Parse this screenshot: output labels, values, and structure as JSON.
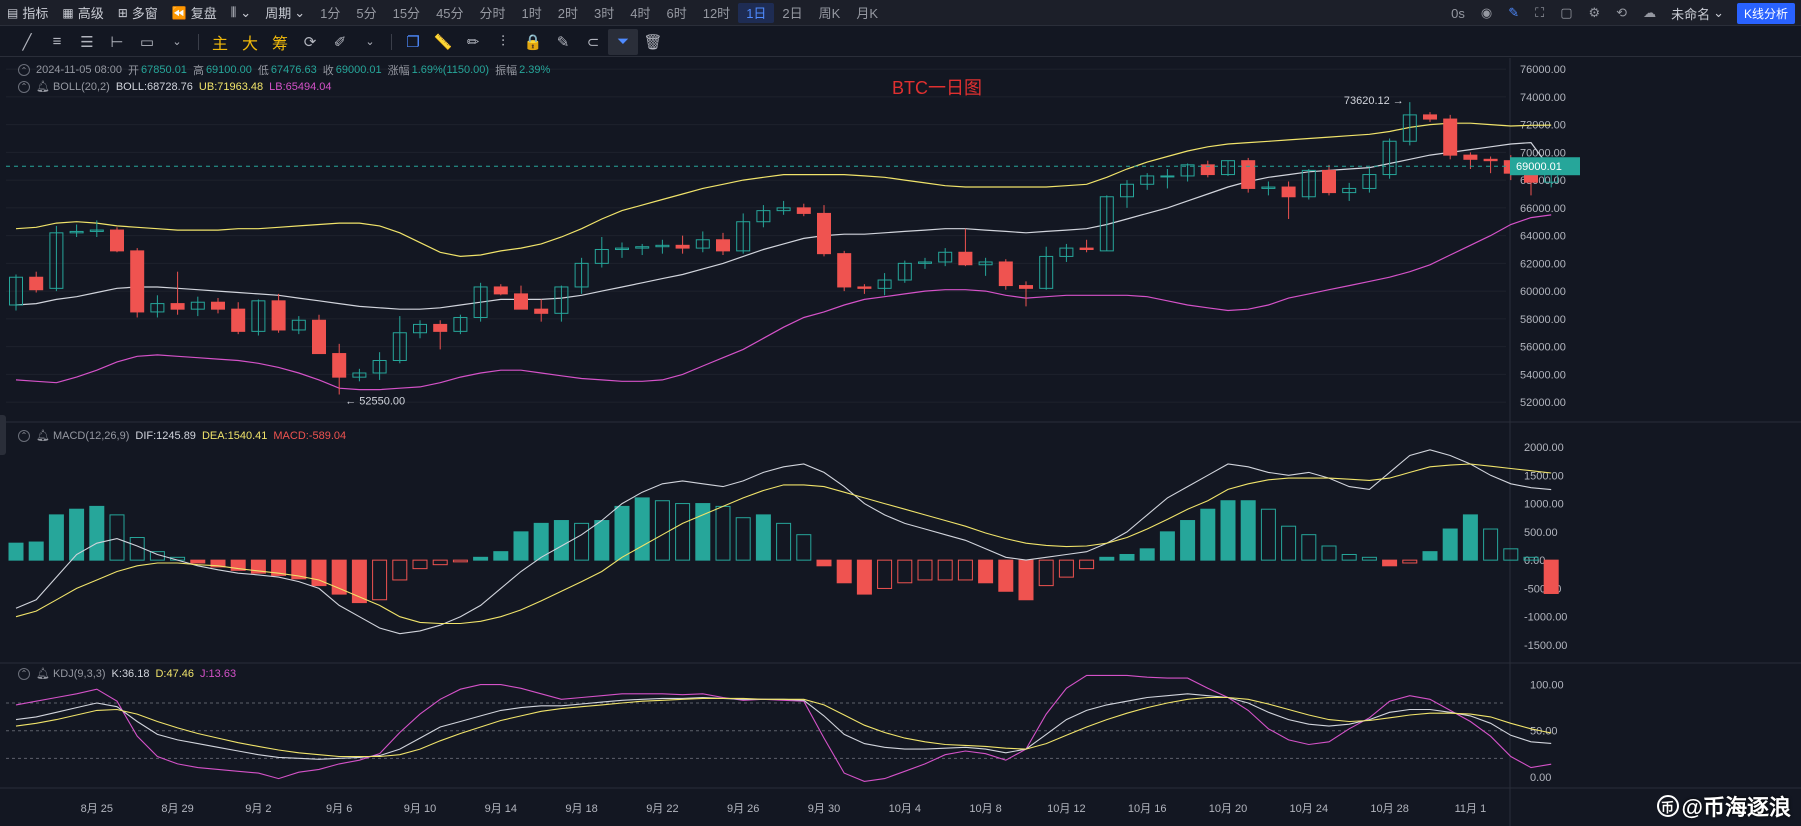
{
  "topbar": {
    "indicators": "指标",
    "advanced": "高级",
    "multi": "多窗",
    "replay": "复盘",
    "period_label": "周期",
    "periods": [
      "1分",
      "5分",
      "15分",
      "45分",
      "分时",
      "1时",
      "2时",
      "3时",
      "4时",
      "6时",
      "12时",
      "1日",
      "2日",
      "周K",
      "月K"
    ],
    "active_period": "1日",
    "countdown": "0s",
    "layout_name": "未命名",
    "kline_btn": "K线分析"
  },
  "drawbar": {
    "main": "主",
    "large": "大",
    "chip": "筹"
  },
  "colors": {
    "up": "#26a69a",
    "down": "#ef5350",
    "boll_mid": "#d1d4dc",
    "boll_up": "#f0e36a",
    "boll_lb": "#d452c8",
    "dif": "#d1d4dc",
    "dea": "#f0e36a",
    "kdj_j": "#d452c8",
    "price_tag": "#26a69a"
  },
  "legend": {
    "date": "2024-11-05 08:00",
    "open_label": "开",
    "open": "67850.01",
    "high_label": "高",
    "high": "69100.00",
    "low_label": "低",
    "low": "67476.63",
    "close_label": "收",
    "close": "69000.01",
    "change_label": "涨幅",
    "change": "1.69%(1150.00)",
    "amp_label": "振幅",
    "amp": "2.39%",
    "boll_name": "BOLL(20,2)",
    "boll": "BOLL:68728.76",
    "ub": "UB:71963.48",
    "lb": "LB:65494.04",
    "macd_name": "MACD(12,26,9)",
    "dif": "DIF:1245.89",
    "dea": "DEA:1540.41",
    "macd": "MACD:-589.04",
    "kdj_name": "KDJ(9,3,3)",
    "k": "K:36.18",
    "d": "D:47.46",
    "j": "J:13.63"
  },
  "annotation_title": "BTC一日图",
  "watermark": "@币海逐浪",
  "chart_data": {
    "type": "candlestick",
    "title": "BTC一日图",
    "x_tick_labels": [
      "8月 25",
      "8月 29",
      "9月 2",
      "9月 6",
      "9月 10",
      "9月 14",
      "9月 18",
      "9月 22",
      "9月 26",
      "9月 30",
      "10月 4",
      "10月 8",
      "10月 12",
      "10月 16",
      "10月 20",
      "10月 24",
      "10月 28",
      "11月 1"
    ],
    "x_tick_positions": [
      4,
      8,
      12,
      16,
      20,
      24,
      28,
      32,
      36,
      40,
      44,
      48,
      52,
      56,
      60,
      64,
      68,
      72
    ],
    "price_axis": {
      "ylim": [
        51000,
        76800
      ],
      "ticks": [
        76000,
        74000,
        72000,
        70000,
        68000,
        66000,
        64000,
        62000,
        60000,
        58000,
        56000,
        54000,
        52000
      ]
    },
    "last_price": "69000.01",
    "high_marker": "73620.12",
    "low_marker": "52550.00",
    "candles": [
      [
        59000,
        61200,
        58600,
        61000
      ],
      [
        61000,
        61400,
        59900,
        60100
      ],
      [
        60200,
        64700,
        60000,
        64200
      ],
      [
        64200,
        64800,
        63900,
        64300
      ],
      [
        64300,
        65100,
        63900,
        64400
      ],
      [
        64400,
        64600,
        62800,
        62900
      ],
      [
        62900,
        63100,
        58100,
        58500
      ],
      [
        58500,
        59700,
        58100,
        59100
      ],
      [
        59100,
        61400,
        58300,
        58700
      ],
      [
        58700,
        59600,
        58200,
        59200
      ],
      [
        59200,
        59500,
        58400,
        58700
      ],
      [
        58700,
        59200,
        56900,
        57100
      ],
      [
        57100,
        59400,
        56800,
        59300
      ],
      [
        59300,
        59800,
        57000,
        57200
      ],
      [
        57200,
        58200,
        56900,
        57900
      ],
      [
        57900,
        58300,
        55500,
        55500
      ],
      [
        55500,
        56200,
        52550,
        53800
      ],
      [
        53800,
        54400,
        53500,
        54100
      ],
      [
        54100,
        55600,
        53600,
        55000
      ],
      [
        55000,
        58200,
        54800,
        57000
      ],
      [
        57000,
        57900,
        56600,
        57600
      ],
      [
        57600,
        57900,
        55800,
        57100
      ],
      [
        57100,
        58300,
        56900,
        58100
      ],
      [
        58100,
        60600,
        57800,
        60300
      ],
      [
        60300,
        60500,
        59700,
        59800
      ],
      [
        59800,
        60400,
        58800,
        58700
      ],
      [
        58700,
        59400,
        57800,
        58400
      ],
      [
        58400,
        60400,
        57800,
        60300
      ],
      [
        60300,
        62400,
        59800,
        62000
      ],
      [
        62000,
        63900,
        61700,
        63000
      ],
      [
        63000,
        63500,
        62400,
        63100
      ],
      [
        63100,
        63400,
        62600,
        63200
      ],
      [
        63200,
        63700,
        62700,
        63300
      ],
      [
        63300,
        64000,
        62700,
        63100
      ],
      [
        63100,
        64300,
        62800,
        63700
      ],
      [
        63700,
        64200,
        62600,
        62900
      ],
      [
        62900,
        65600,
        62700,
        65000
      ],
      [
        65000,
        66200,
        64600,
        65800
      ],
      [
        65800,
        66500,
        65500,
        66000
      ],
      [
        66000,
        66300,
        65400,
        65600
      ],
      [
        65600,
        66200,
        62500,
        62700
      ],
      [
        62700,
        62900,
        60000,
        60300
      ],
      [
        60300,
        60500,
        59800,
        60200
      ],
      [
        60200,
        61300,
        59700,
        60800
      ],
      [
        60800,
        62200,
        60600,
        62000
      ],
      [
        62000,
        62400,
        61600,
        62100
      ],
      [
        62100,
        63100,
        61800,
        62800
      ],
      [
        62800,
        64500,
        61800,
        61900
      ],
      [
        61900,
        62400,
        61100,
        62100
      ],
      [
        62100,
        62300,
        60100,
        60400
      ],
      [
        60400,
        60700,
        58900,
        60200
      ],
      [
        60200,
        63200,
        60100,
        62500
      ],
      [
        62500,
        63400,
        62100,
        63100
      ],
      [
        63100,
        63700,
        62800,
        63000
      ],
      [
        62900,
        66900,
        62900,
        66800
      ],
      [
        66800,
        68000,
        66000,
        67700
      ],
      [
        67700,
        68500,
        67300,
        68300
      ],
      [
        68300,
        68800,
        67400,
        68300
      ],
      [
        68300,
        69200,
        67900,
        69100
      ],
      [
        69100,
        69400,
        68200,
        68400
      ],
      [
        68400,
        69400,
        68300,
        69400
      ],
      [
        69400,
        69600,
        67100,
        67400
      ],
      [
        67400,
        67900,
        66900,
        67500
      ],
      [
        67500,
        67900,
        65200,
        66800
      ],
      [
        66800,
        68800,
        66600,
        68700
      ],
      [
        68700,
        69100,
        66900,
        67100
      ],
      [
        67100,
        67800,
        66500,
        67400
      ],
      [
        67400,
        68900,
        67100,
        68400
      ],
      [
        68400,
        71000,
        68100,
        70800
      ],
      [
        70800,
        73620.12,
        70500,
        72700
      ],
      [
        72700,
        72900,
        72200,
        72400
      ],
      [
        72400,
        72700,
        69500,
        69800
      ],
      [
        69800,
        70000,
        68800,
        69500
      ],
      [
        69500,
        69700,
        68500,
        69400
      ],
      [
        69400,
        69800,
        68000,
        68500
      ],
      [
        68500,
        69600,
        66900,
        67850
      ],
      [
        67850,
        69100,
        67476,
        69000
      ]
    ],
    "boll": {
      "mid": [
        59000,
        59100,
        59400,
        59600,
        59900,
        60200,
        60300,
        60300,
        60200,
        60100,
        60000,
        59900,
        59800,
        59700,
        59500,
        59300,
        59100,
        58900,
        58800,
        58700,
        58700,
        58800,
        59000,
        59200,
        59400,
        59400,
        59400,
        59500,
        59700,
        60000,
        60300,
        60600,
        60900,
        61200,
        61600,
        62000,
        62500,
        63000,
        63400,
        63800,
        64000,
        64100,
        64100,
        64200,
        64300,
        64400,
        64500,
        64500,
        64400,
        64300,
        64200,
        64300,
        64400,
        64500,
        64800,
        65200,
        65600,
        66000,
        66500,
        67000,
        67500,
        67900,
        68200,
        68400,
        68600,
        68700,
        68800,
        68900,
        69200,
        69500,
        69800,
        70000,
        70200,
        70400,
        70600,
        70700,
        68728.76
      ],
      "upper": [
        64500,
        64600,
        64900,
        65000,
        64900,
        64700,
        64600,
        64500,
        64400,
        64400,
        64400,
        64500,
        64500,
        64600,
        64700,
        64800,
        64900,
        64900,
        64700,
        64200,
        63500,
        62800,
        62500,
        62600,
        62900,
        63100,
        63400,
        63900,
        64500,
        65200,
        65800,
        66200,
        66600,
        67000,
        67400,
        67700,
        68000,
        68200,
        68400,
        68400,
        68400,
        68400,
        68300,
        68200,
        68000,
        67800,
        67600,
        67500,
        67500,
        67500,
        67500,
        67500,
        67600,
        67700,
        68200,
        68800,
        69300,
        69700,
        70100,
        70400,
        70600,
        70700,
        70800,
        70900,
        71000,
        71100,
        71200,
        71300,
        71500,
        71800,
        72000,
        72100,
        72100,
        72000,
        71900,
        71950,
        71963.48
      ],
      "lower": [
        53600,
        53500,
        53400,
        53800,
        54300,
        54900,
        55300,
        55400,
        55300,
        55200,
        55100,
        55000,
        54800,
        54500,
        54100,
        53600,
        53000,
        52900,
        52900,
        53000,
        53100,
        53400,
        53800,
        54100,
        54300,
        54300,
        54100,
        53900,
        53700,
        53600,
        53500,
        53500,
        53600,
        54000,
        54600,
        55200,
        55800,
        56600,
        57400,
        58100,
        58500,
        59000,
        59400,
        59600,
        59800,
        60000,
        60100,
        60100,
        60000,
        59700,
        59500,
        59600,
        59700,
        59700,
        59700,
        59700,
        59600,
        59300,
        59000,
        58800,
        58600,
        58700,
        59000,
        59500,
        59800,
        60100,
        60400,
        60700,
        61000,
        61400,
        61900,
        62600,
        63300,
        64000,
        64800,
        65300,
        65494.04
      ]
    },
    "macd_axis": {
      "ylim": [
        -1800,
        2300
      ],
      "ticks": [
        2000,
        1500,
        1000,
        500,
        0,
        -500,
        -1000,
        -1500
      ]
    },
    "macd": {
      "dif": [
        -850,
        -700,
        -300,
        100,
        300,
        380,
        250,
        100,
        0,
        -100,
        -170,
        -230,
        -260,
        -300,
        -380,
        -500,
        -800,
        -1000,
        -1200,
        -1300,
        -1250,
        -1150,
        -1000,
        -800,
        -500,
        -200,
        50,
        250,
        450,
        700,
        1000,
        1200,
        1350,
        1400,
        1350,
        1300,
        1400,
        1550,
        1650,
        1700,
        1550,
        1300,
        1000,
        800,
        650,
        550,
        450,
        350,
        200,
        50,
        0,
        50,
        100,
        150,
        300,
        500,
        800,
        1100,
        1300,
        1500,
        1700,
        1650,
        1550,
        1500,
        1550,
        1450,
        1300,
        1250,
        1550,
        1850,
        1950,
        1850,
        1700,
        1500,
        1350,
        1280,
        1245.89
      ],
      "dea": [
        -1000,
        -900,
        -700,
        -500,
        -350,
        -200,
        -100,
        -50,
        -50,
        -80,
        -100,
        -150,
        -190,
        -230,
        -280,
        -350,
        -500,
        -650,
        -800,
        -1000,
        -1100,
        -1120,
        -1120,
        -1080,
        -1000,
        -880,
        -720,
        -550,
        -380,
        -200,
        50,
        250,
        450,
        650,
        800,
        950,
        1100,
        1230,
        1330,
        1330,
        1300,
        1200,
        1100,
        1000,
        900,
        800,
        700,
        600,
        480,
        380,
        300,
        260,
        240,
        250,
        300,
        400,
        550,
        720,
        900,
        1050,
        1250,
        1350,
        1420,
        1450,
        1450,
        1450,
        1430,
        1410,
        1450,
        1550,
        1650,
        1680,
        1700,
        1660,
        1620,
        1580,
        1540.41
      ],
      "hist": [
        300,
        320,
        800,
        900,
        950,
        800,
        400,
        150,
        50,
        -50,
        -120,
        -180,
        -230,
        -270,
        -330,
        -450,
        -600,
        -750,
        -700,
        -350,
        -150,
        -80,
        -30,
        50,
        150,
        500,
        650,
        700,
        650,
        700,
        950,
        1100,
        1050,
        1000,
        1000,
        950,
        750,
        800,
        650,
        450,
        -100,
        -400,
        -600,
        -500,
        -400,
        -350,
        -350,
        -350,
        -400,
        -550,
        -700,
        -450,
        -300,
        -150,
        50,
        100,
        200,
        500,
        700,
        900,
        1050,
        1050,
        900,
        600,
        450,
        250,
        100,
        50,
        -100,
        -50,
        150,
        550,
        800,
        550,
        200,
        50,
        -589.04
      ]
    },
    "kdj_axis": {
      "ylim": [
        -10,
        118
      ],
      "ticks": [
        100,
        50,
        0
      ]
    },
    "kdj": {
      "k": [
        62,
        65,
        70,
        75,
        80,
        76,
        60,
        46,
        40,
        36,
        32,
        28,
        24,
        21,
        20,
        19,
        20,
        21,
        23,
        30,
        42,
        54,
        60,
        66,
        72,
        75,
        77,
        77,
        79,
        81,
        83,
        84,
        85,
        85,
        86,
        85,
        84,
        84,
        84,
        83,
        66,
        46,
        36,
        32,
        30,
        30,
        31,
        32,
        30,
        26,
        30,
        46,
        62,
        72,
        78,
        82,
        86,
        88,
        90,
        88,
        86,
        80,
        70,
        62,
        57,
        55,
        57,
        62,
        70,
        73,
        73,
        70,
        66,
        58,
        45,
        38,
        36.18
      ],
      "d": [
        55,
        58,
        62,
        67,
        72,
        73,
        68,
        60,
        53,
        47,
        42,
        37,
        33,
        29,
        26,
        24,
        22,
        22,
        22,
        24,
        30,
        39,
        47,
        54,
        61,
        66,
        71,
        74,
        76,
        78,
        80,
        82,
        83,
        84,
        85,
        85,
        85,
        84,
        84,
        84,
        78,
        67,
        56,
        48,
        42,
        38,
        35,
        34,
        33,
        31,
        30,
        36,
        45,
        54,
        62,
        69,
        75,
        80,
        84,
        86,
        86,
        84,
        79,
        73,
        67,
        62,
        60,
        61,
        64,
        67,
        69,
        69,
        68,
        65,
        58,
        52,
        47.46
      ],
      "j": [
        78,
        82,
        86,
        90,
        95,
        82,
        44,
        22,
        14,
        10,
        8,
        6,
        4,
        -2,
        5,
        8,
        14,
        18,
        25,
        48,
        68,
        84,
        95,
        100,
        100,
        96,
        90,
        84,
        86,
        88,
        90,
        90,
        90,
        89,
        90,
        86,
        83,
        84,
        83,
        82,
        42,
        4,
        -5,
        -2,
        6,
        14,
        24,
        28,
        25,
        18,
        30,
        68,
        96,
        110,
        110,
        110,
        108,
        107,
        107,
        96,
        86,
        72,
        52,
        40,
        35,
        38,
        52,
        64,
        82,
        88,
        84,
        72,
        60,
        44,
        22,
        10,
        13.63
      ]
    }
  }
}
